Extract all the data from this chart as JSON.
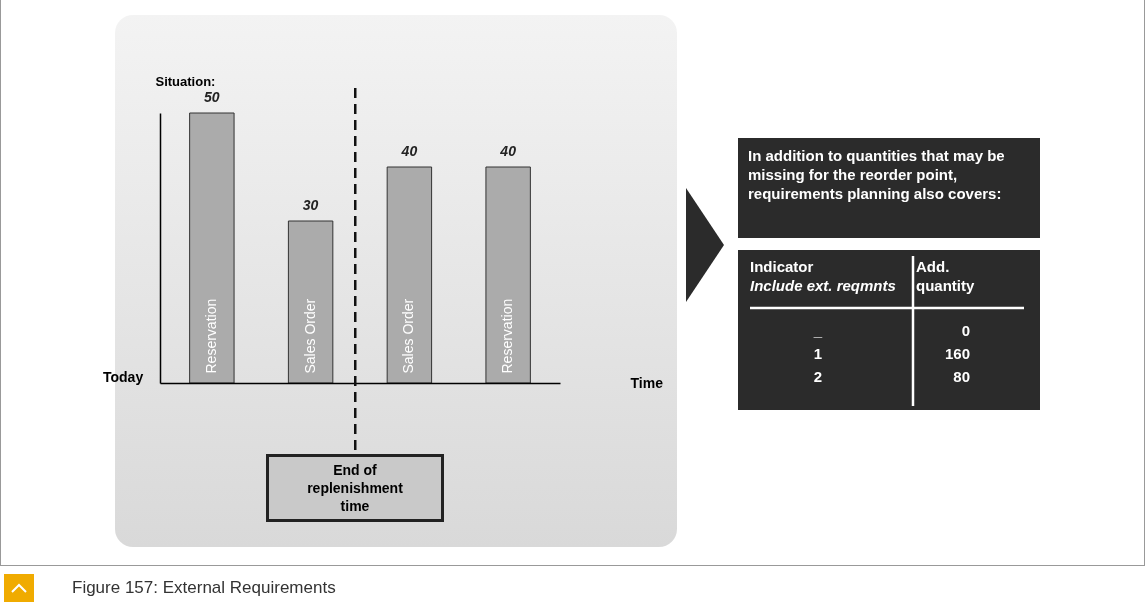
{
  "chart_data": [
    {
      "type": "bar",
      "ylabel": "Situation:",
      "xlabel": "Time",
      "categories": [
        "Reservation",
        "Sales Order",
        "Sales Order",
        "Reservation"
      ],
      "values": [
        50,
        30,
        40,
        40
      ],
      "color": "#ababab",
      "data_labels": true,
      "tick_labels": "x",
      "grid": false,
      "annotations": [
        "Today",
        "End of replenishment time",
        "Figure 157: External Requirements"
      ]
    },
    {
      "type": "other",
      "title": "In  addition to quantities that may be missing for the reorder point, requirements planning also covers:",
      "annotations": [
        "Indicator",
        "Include ext. reqmnts",
        "Add.",
        "quantity",
        "_",
        "0",
        "1",
        "160",
        "2",
        "80"
      ]
    }
  ]
}
